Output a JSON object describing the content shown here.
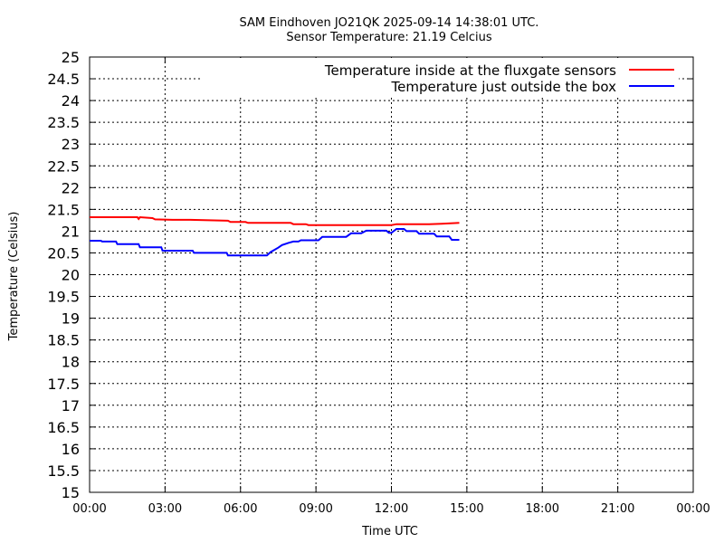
{
  "chart_data": {
    "type": "line",
    "title": "SAM Eindhoven JO21QK 2025-09-14 14:38:01 UTC.",
    "subtitle": "Sensor Temperature: 21.19 Celcius",
    "xlabel": "Time UTC",
    "ylabel": "Temperature (Celsius)",
    "xlim": [
      0,
      24
    ],
    "ylim": [
      15,
      25
    ],
    "x_ticks": [
      {
        "v": 0,
        "label": "00:00"
      },
      {
        "v": 3,
        "label": "03:00"
      },
      {
        "v": 6,
        "label": "06:00"
      },
      {
        "v": 9,
        "label": "09:00"
      },
      {
        "v": 12,
        "label": "12:00"
      },
      {
        "v": 15,
        "label": "15:00"
      },
      {
        "v": 18,
        "label": "18:00"
      },
      {
        "v": 21,
        "label": "21:00"
      },
      {
        "v": 24,
        "label": "00:00"
      }
    ],
    "y_ticks": [
      {
        "v": 15,
        "label": "15"
      },
      {
        "v": 15.5,
        "label": "15.5"
      },
      {
        "v": 16,
        "label": "16"
      },
      {
        "v": 16.5,
        "label": "16.5"
      },
      {
        "v": 17,
        "label": "17"
      },
      {
        "v": 17.5,
        "label": "17.5"
      },
      {
        "v": 18,
        "label": "18"
      },
      {
        "v": 18.5,
        "label": "18.5"
      },
      {
        "v": 19,
        "label": "19"
      },
      {
        "v": 19.5,
        "label": "19.5"
      },
      {
        "v": 20,
        "label": "20"
      },
      {
        "v": 20.5,
        "label": "20.5"
      },
      {
        "v": 21,
        "label": "21"
      },
      {
        "v": 21.5,
        "label": "21.5"
      },
      {
        "v": 22,
        "label": "22"
      },
      {
        "v": 22.5,
        "label": "22.5"
      },
      {
        "v": 23,
        "label": "23"
      },
      {
        "v": 23.5,
        "label": "23.5"
      },
      {
        "v": 24,
        "label": "24"
      },
      {
        "v": 24.5,
        "label": "24.5"
      },
      {
        "v": 25,
        "label": "25"
      }
    ],
    "grid": true,
    "legend_position": "top-right",
    "series": [
      {
        "name": "Temperature inside at the fluxgate sensors",
        "color": "#ff0000",
        "x": [
          0.0,
          1.9,
          1.95,
          2.0,
          2.5,
          2.6,
          3.3,
          4.0,
          5.5,
          5.6,
          6.2,
          6.3,
          8.0,
          8.1,
          8.6,
          8.7,
          12.0,
          12.2,
          12.8,
          13.5,
          14.0,
          14.7
        ],
        "y": [
          21.32,
          21.32,
          21.28,
          21.32,
          21.3,
          21.27,
          21.26,
          21.26,
          21.24,
          21.21,
          21.21,
          21.19,
          21.19,
          21.16,
          21.16,
          21.14,
          21.14,
          21.16,
          21.16,
          21.16,
          21.17,
          21.19
        ]
      },
      {
        "name": "Temperature just outside the box",
        "color": "#0000ff",
        "x": [
          0.0,
          0.45,
          0.5,
          1.05,
          1.1,
          1.95,
          2.0,
          2.85,
          2.9,
          4.1,
          4.15,
          5.45,
          5.5,
          7.05,
          7.2,
          7.5,
          7.65,
          7.9,
          8.1,
          8.3,
          8.4,
          9.1,
          9.25,
          10.2,
          10.4,
          10.8,
          11.0,
          11.8,
          11.9,
          12.0,
          12.2,
          12.5,
          12.6,
          13.0,
          13.1,
          13.7,
          13.8,
          14.3,
          14.4,
          14.7
        ],
        "y": [
          20.78,
          20.78,
          20.76,
          20.76,
          20.7,
          20.7,
          20.63,
          20.63,
          20.55,
          20.55,
          20.5,
          20.5,
          20.44,
          20.44,
          20.52,
          20.62,
          20.68,
          20.73,
          20.76,
          20.76,
          20.79,
          20.79,
          20.87,
          20.87,
          20.95,
          20.95,
          21.01,
          21.01,
          20.96,
          20.96,
          21.05,
          21.05,
          21.0,
          21.0,
          20.94,
          20.94,
          20.88,
          20.88,
          20.8,
          20.8
        ]
      }
    ]
  }
}
